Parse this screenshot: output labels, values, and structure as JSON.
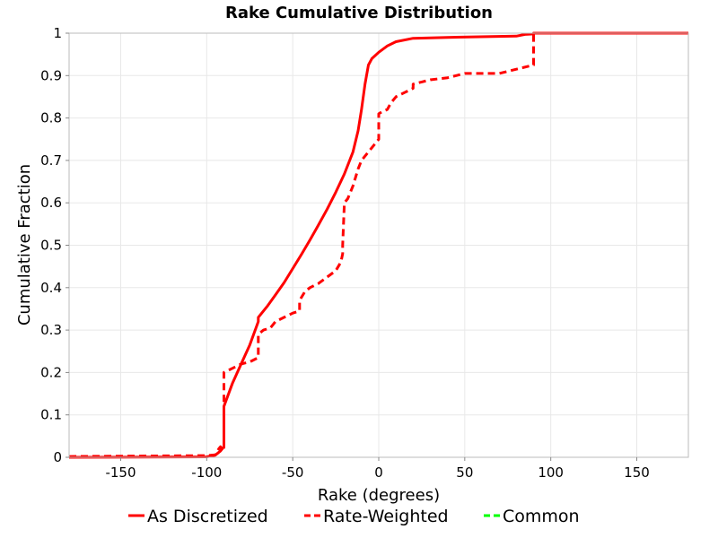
{
  "chart_data": {
    "type": "line",
    "title": "Rake Cumulative Distribution",
    "xlabel": "Rake (degrees)",
    "ylabel": "Cumulative Fraction",
    "xlim": [
      -180,
      180
    ],
    "ylim": [
      0,
      1
    ],
    "xticks": [
      -150,
      -100,
      -50,
      0,
      50,
      100,
      150
    ],
    "yticks": [
      0,
      0.1,
      0.2,
      0.3,
      0.4,
      0.5,
      0.6,
      0.7,
      0.8,
      0.9,
      1
    ],
    "xtick_labels": [
      "-150",
      "-100",
      "-50",
      "0",
      "50",
      "100",
      "150"
    ],
    "ytick_labels": [
      "0",
      "0.1",
      "0.2",
      "0.3",
      "0.4",
      "0.5",
      "0.6",
      "0.7",
      "0.8",
      "0.9",
      "1"
    ],
    "grid": true,
    "legend_position": "bottom",
    "series": [
      {
        "name": "As Discretized",
        "color": "#ff0000",
        "dash": "solid",
        "points": [
          [
            -180,
            0
          ],
          [
            -100,
            0.001
          ],
          [
            -95,
            0.005
          ],
          [
            -92,
            0.015
          ],
          [
            -90,
            0.025
          ],
          [
            -90,
            0.12
          ],
          [
            -85,
            0.175
          ],
          [
            -80,
            0.22
          ],
          [
            -75,
            0.265
          ],
          [
            -70,
            0.32
          ],
          [
            -70,
            0.33
          ],
          [
            -65,
            0.355
          ],
          [
            -60,
            0.383
          ],
          [
            -55,
            0.412
          ],
          [
            -50,
            0.445
          ],
          [
            -45,
            0.478
          ],
          [
            -40,
            0.512
          ],
          [
            -35,
            0.548
          ],
          [
            -30,
            0.585
          ],
          [
            -25,
            0.625
          ],
          [
            -20,
            0.668
          ],
          [
            -15,
            0.72
          ],
          [
            -12,
            0.77
          ],
          [
            -10,
            0.82
          ],
          [
            -8,
            0.88
          ],
          [
            -6,
            0.925
          ],
          [
            -4,
            0.94
          ],
          [
            0,
            0.955
          ],
          [
            5,
            0.97
          ],
          [
            10,
            0.98
          ],
          [
            20,
            0.988
          ],
          [
            40,
            0.99
          ],
          [
            80,
            0.993
          ],
          [
            85,
            0.997
          ],
          [
            90,
            0.998
          ],
          [
            90,
            1
          ],
          [
            180,
            1
          ]
        ]
      },
      {
        "name": "Rate-Weighted",
        "color": "#ff0000",
        "dash": "dashed",
        "points": [
          [
            -180,
            0.002
          ],
          [
            -100,
            0.004
          ],
          [
            -95,
            0.006
          ],
          [
            -93,
            0.02
          ],
          [
            -92,
            0.025
          ],
          [
            -91,
            0.015
          ],
          [
            -90,
            0.02
          ],
          [
            -90,
            0.2
          ],
          [
            -85,
            0.21
          ],
          [
            -80,
            0.22
          ],
          [
            -75,
            0.225
          ],
          [
            -70,
            0.235
          ],
          [
            -70,
            0.29
          ],
          [
            -67,
            0.3
          ],
          [
            -63,
            0.305
          ],
          [
            -60,
            0.32
          ],
          [
            -55,
            0.33
          ],
          [
            -50,
            0.34
          ],
          [
            -46,
            0.345
          ],
          [
            -46,
            0.37
          ],
          [
            -43,
            0.39
          ],
          [
            -40,
            0.4
          ],
          [
            -35,
            0.41
          ],
          [
            -30,
            0.425
          ],
          [
            -25,
            0.44
          ],
          [
            -22,
            0.46
          ],
          [
            -21,
            0.48
          ],
          [
            -21,
            0.5
          ],
          [
            -20,
            0.6
          ],
          [
            -18,
            0.61
          ],
          [
            -15,
            0.64
          ],
          [
            -12,
            0.68
          ],
          [
            -10,
            0.7
          ],
          [
            -6,
            0.72
          ],
          [
            -3,
            0.735
          ],
          [
            0,
            0.75
          ],
          [
            0,
            0.81
          ],
          [
            2,
            0.815
          ],
          [
            5,
            0.82
          ],
          [
            7,
            0.835
          ],
          [
            10,
            0.85
          ],
          [
            15,
            0.86
          ],
          [
            20,
            0.87
          ],
          [
            20,
            0.88
          ],
          [
            25,
            0.885
          ],
          [
            30,
            0.89
          ],
          [
            40,
            0.895
          ],
          [
            45,
            0.9
          ],
          [
            50,
            0.905
          ],
          [
            60,
            0.905
          ],
          [
            70,
            0.905
          ],
          [
            80,
            0.915
          ],
          [
            90,
            0.925
          ],
          [
            90,
            1
          ],
          [
            180,
            1
          ]
        ]
      },
      {
        "name": "Common",
        "color": "#00ff00",
        "dash": "dashed",
        "points": []
      }
    ]
  }
}
